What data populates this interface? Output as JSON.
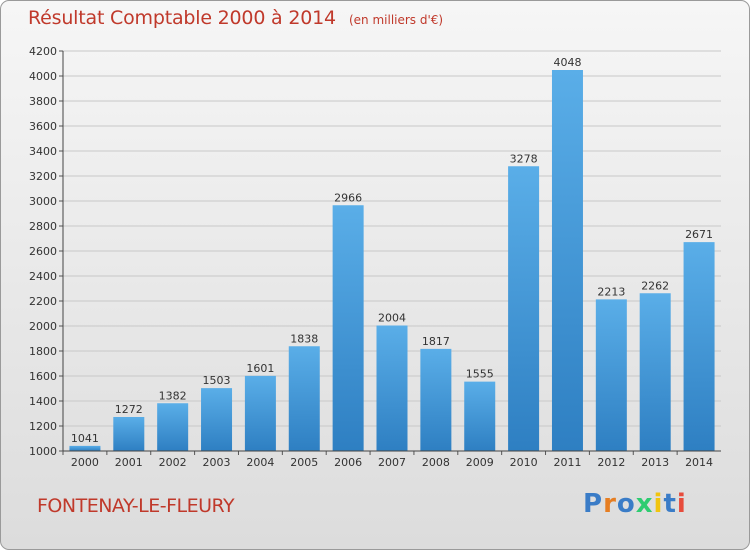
{
  "header": {
    "title": "Résultat Comptable 2000 à 2014",
    "subtitle": "(en milliers d'€)"
  },
  "footer": {
    "place": "FONTENAY-LE-FLEURY",
    "logo_text": "Proxiti",
    "logo_colors": [
      "#3a7cc7",
      "#e67e22",
      "#3a7cc7",
      "#2ecc71",
      "#f1c40f",
      "#3a7cc7",
      "#e74c3c"
    ]
  },
  "colors": {
    "bar_light": "#5aaee8",
    "bar_dark": "#2e7fc2",
    "title": "#c0392b",
    "grid": "#c8c8c8"
  },
  "chart_data": {
    "type": "bar",
    "categories": [
      "2000",
      "2001",
      "2002",
      "2003",
      "2004",
      "2005",
      "2006",
      "2007",
      "2008",
      "2009",
      "2010",
      "2011",
      "2012",
      "2013",
      "2014"
    ],
    "values": [
      1041,
      1272,
      1382,
      1503,
      1601,
      1838,
      2966,
      2004,
      1817,
      1555,
      3278,
      4048,
      2213,
      2262,
      2671
    ],
    "ylim": [
      1000,
      4200
    ],
    "yticks": [
      1000,
      1200,
      1400,
      1600,
      1800,
      2000,
      2200,
      2400,
      2600,
      2800,
      3000,
      3200,
      3400,
      3600,
      3800,
      4000,
      4200
    ],
    "grid": true,
    "title": "Résultat Comptable 2000 à 2014",
    "xlabel": "",
    "ylabel": ""
  }
}
